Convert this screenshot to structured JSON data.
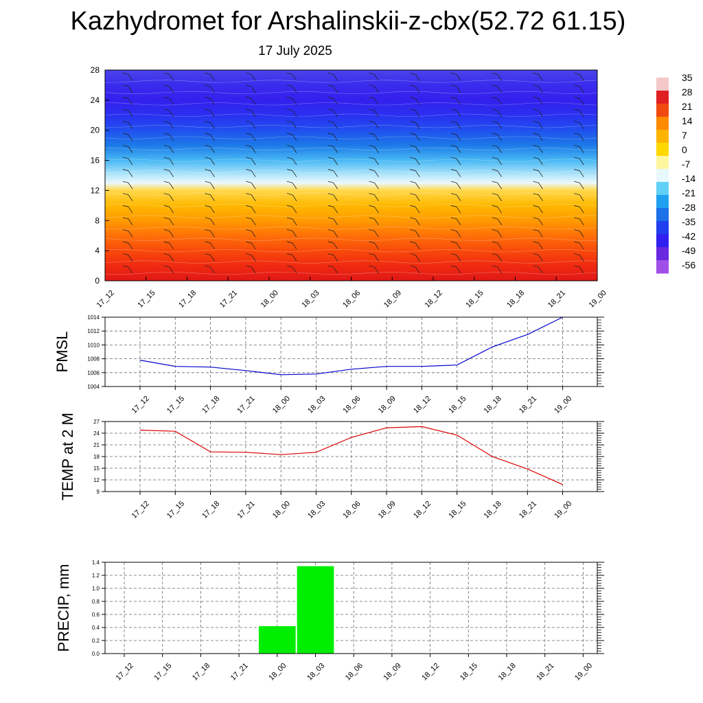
{
  "title": "Kazhydromet for Arshalinskii-z-cbx(52.72 61.15)",
  "subtitle": "17 July 2025",
  "time_labels": [
    "17_12",
    "17_15",
    "17_18",
    "17_21",
    "18_00",
    "18_03",
    "18_06",
    "18_09",
    "18_12",
    "18_15",
    "18_18",
    "18_21",
    "19_00"
  ],
  "chart_data": [
    {
      "type": "heatmap",
      "name": "temperature-cross-section",
      "ylim": [
        0,
        28
      ],
      "yticks": [
        "0",
        "4",
        "8",
        "12",
        "16",
        "20",
        "24",
        "28"
      ],
      "x": [
        "17_12",
        "17_15",
        "17_18",
        "17_21",
        "18_00",
        "18_03",
        "18_06",
        "18_09",
        "18_12",
        "18_15",
        "18_18",
        "18_21",
        "19_00"
      ],
      "colorbar_labels": [
        "35",
        "28",
        "21",
        "14",
        "7",
        "0",
        "-7",
        "-14",
        "-21",
        "-28",
        "-35",
        "-42",
        "-49",
        "-56"
      ],
      "colorbar_colors": [
        "#f4c8c8",
        "#e02020",
        "#f04a10",
        "#ff8a00",
        "#ffb400",
        "#ffd800",
        "#fff6a0",
        "#e8f8ff",
        "#60d0f8",
        "#20a0f0",
        "#1c70e8",
        "#2040f0",
        "#3020f0",
        "#6828e0",
        "#a050e8"
      ],
      "profile_levels": [
        0,
        2,
        4,
        6,
        8,
        10,
        12,
        13,
        14,
        16,
        18,
        20,
        22,
        24,
        26,
        28
      ],
      "profile_colors": [
        "#e01818",
        "#f02a10",
        "#f84a0a",
        "#ff7008",
        "#ff9a00",
        "#ffb800",
        "#ffd84a",
        "#eaf8ff",
        "#b8e8fa",
        "#48b8f4",
        "#1c7ae8",
        "#2050f0",
        "#2a30f0",
        "#3420ee",
        "#3a2cee",
        "#4a44e8"
      ]
    },
    {
      "type": "line",
      "name": "pmsl",
      "ylabel": "PMSL",
      "ylim": [
        1004,
        1014
      ],
      "yticks": [
        "1004",
        "1006",
        "1008",
        "1010",
        "1012",
        "1014"
      ],
      "x": [
        "17_12",
        "17_15",
        "17_18",
        "17_21",
        "18_00",
        "18_03",
        "18_06",
        "18_09",
        "18_12",
        "18_15",
        "18_18",
        "18_21",
        "19_00"
      ],
      "values": [
        1007.8,
        1006.9,
        1006.8,
        1006.3,
        1005.7,
        1005.8,
        1006.5,
        1006.9,
        1006.9,
        1007.1,
        1009.7,
        1011.5,
        1014.0
      ],
      "color": "#0000cc"
    },
    {
      "type": "line",
      "name": "temp2m",
      "ylabel": "TEMP at 2 M",
      "ylim": [
        9,
        27
      ],
      "yticks": [
        "9",
        "12",
        "15",
        "18",
        "21",
        "24",
        "27"
      ],
      "x": [
        "17_12",
        "17_15",
        "17_18",
        "17_21",
        "18_00",
        "18_03",
        "18_06",
        "18_09",
        "18_12",
        "18_15",
        "18_18",
        "18_21",
        "19_00"
      ],
      "values": [
        24.8,
        24.5,
        19.2,
        19.1,
        18.5,
        19.1,
        22.9,
        25.4,
        25.7,
        23.5,
        18.0,
        14.8,
        10.8
      ],
      "color": "#dd0000"
    },
    {
      "type": "bar",
      "name": "precip",
      "ylabel": "PRECIP, mm",
      "ylim": [
        0,
        1.4
      ],
      "yticks": [
        "0.0",
        "0.2",
        "0.4",
        "0.6",
        "0.8",
        "1.0",
        "1.2",
        "1.4"
      ],
      "x": [
        "17_12",
        "17_15",
        "17_18",
        "17_21",
        "18_00",
        "18_03",
        "18_06",
        "18_09",
        "18_12",
        "18_15",
        "18_18",
        "18_21",
        "19_00"
      ],
      "values": [
        0,
        0,
        0,
        0,
        0.42,
        1.34,
        0,
        0,
        0,
        0,
        0,
        0,
        0
      ],
      "color": "#00ee00"
    }
  ]
}
